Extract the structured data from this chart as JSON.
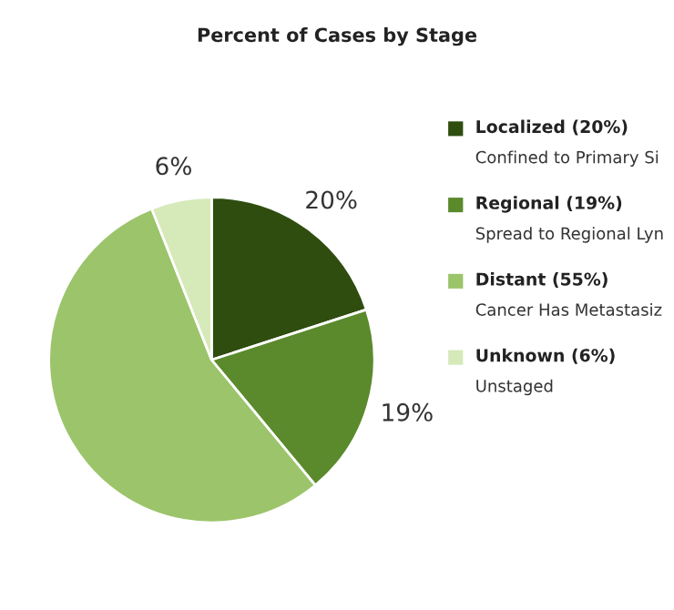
{
  "chart_data": {
    "type": "pie",
    "title": "Percent of Cases by Stage",
    "categories": [
      "Localized (20%)\nConfined to Primary Si",
      "Regional (19%)\nSpread to Regional Lyn",
      "Distant (55%)\nCancer Has Metastasiz",
      "Unknown (6%)\nUnstaged"
    ],
    "values": [
      20,
      19,
      55,
      6
    ],
    "colors": [
      "#2e4d0f",
      "#5b8a2c",
      "#9cc46b",
      "#d6e9b8"
    ],
    "value_labels": [
      "20%",
      "19%",
      null,
      "6%"
    ],
    "legend": "right"
  }
}
